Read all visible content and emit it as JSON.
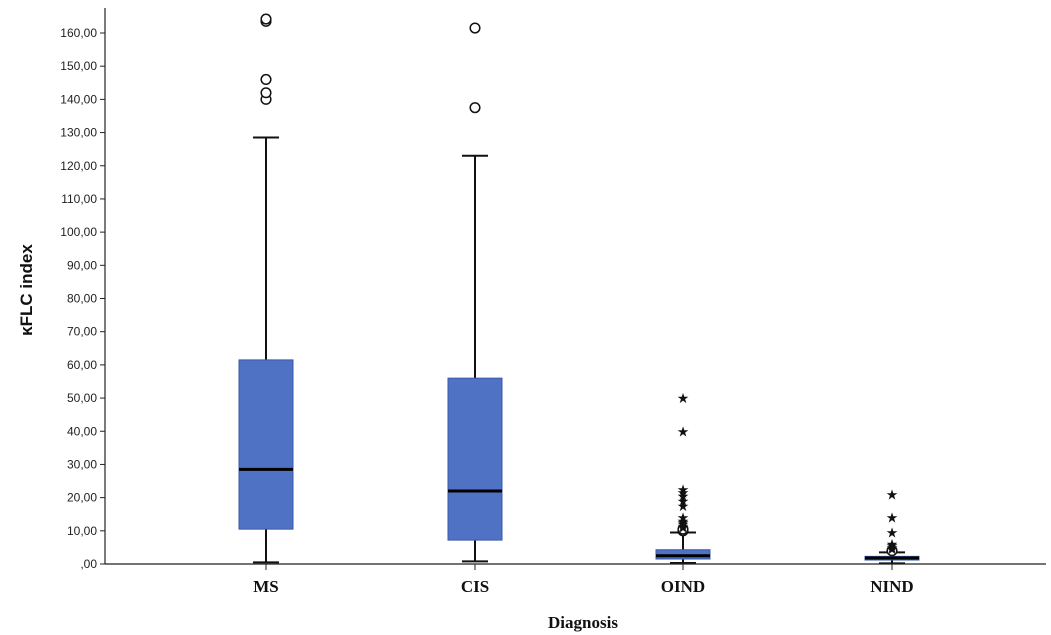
{
  "chart_data": {
    "type": "boxplot",
    "xlabel": "Diagnosis",
    "ylabel": "κFLC index",
    "ylim": [
      0,
      165
    ],
    "ytick_values": [
      0,
      10,
      20,
      30,
      40,
      50,
      60,
      70,
      80,
      90,
      100,
      110,
      120,
      130,
      140,
      150,
      160
    ],
    "ytick_labels": [
      ",00",
      "10,00",
      "20,00",
      "30,00",
      "40,00",
      "50,00",
      "60,00",
      "70,00",
      "80,00",
      "90,00",
      "100,00",
      "110,00",
      "120,00",
      "130,00",
      "140,00",
      "150,00",
      "160,00"
    ],
    "categories": [
      "MS",
      "CIS",
      "OIND",
      "NIND"
    ],
    "box_color": "#4f72c4",
    "boxes": [
      {
        "category": "MS",
        "whisker_low": 0.5,
        "q1": 10.5,
        "median": 28.5,
        "q3": 61.5,
        "whisker_high": 128.5,
        "outliers": [
          140,
          142,
          146,
          163.5,
          164.2
        ],
        "extremes": []
      },
      {
        "category": "CIS",
        "whisker_low": 0.8,
        "q1": 7.2,
        "median": 22.0,
        "q3": 56.0,
        "whisker_high": 123.0,
        "outliers": [
          137.5,
          161.5
        ],
        "extremes": []
      },
      {
        "category": "OIND",
        "whisker_low": 0.3,
        "q1": 1.5,
        "median": 2.5,
        "q3": 4.3,
        "whisker_high": 9.5,
        "outliers": [
          10.0,
          10.5
        ],
        "extremes": [
          11.0,
          11.5,
          12.0,
          12.5,
          13.0,
          14.0,
          17.5,
          19.0,
          20.5,
          21.5,
          22.5,
          40.0,
          50.0
        ]
      },
      {
        "category": "NIND",
        "whisker_low": 0.2,
        "q1": 1.2,
        "median": 1.8,
        "q3": 2.3,
        "whisker_high": 3.5,
        "outliers": [
          4.0
        ],
        "extremes": [
          4.5,
          5.0,
          5.5,
          6.0,
          9.5,
          14.0,
          21.0
        ]
      }
    ]
  }
}
